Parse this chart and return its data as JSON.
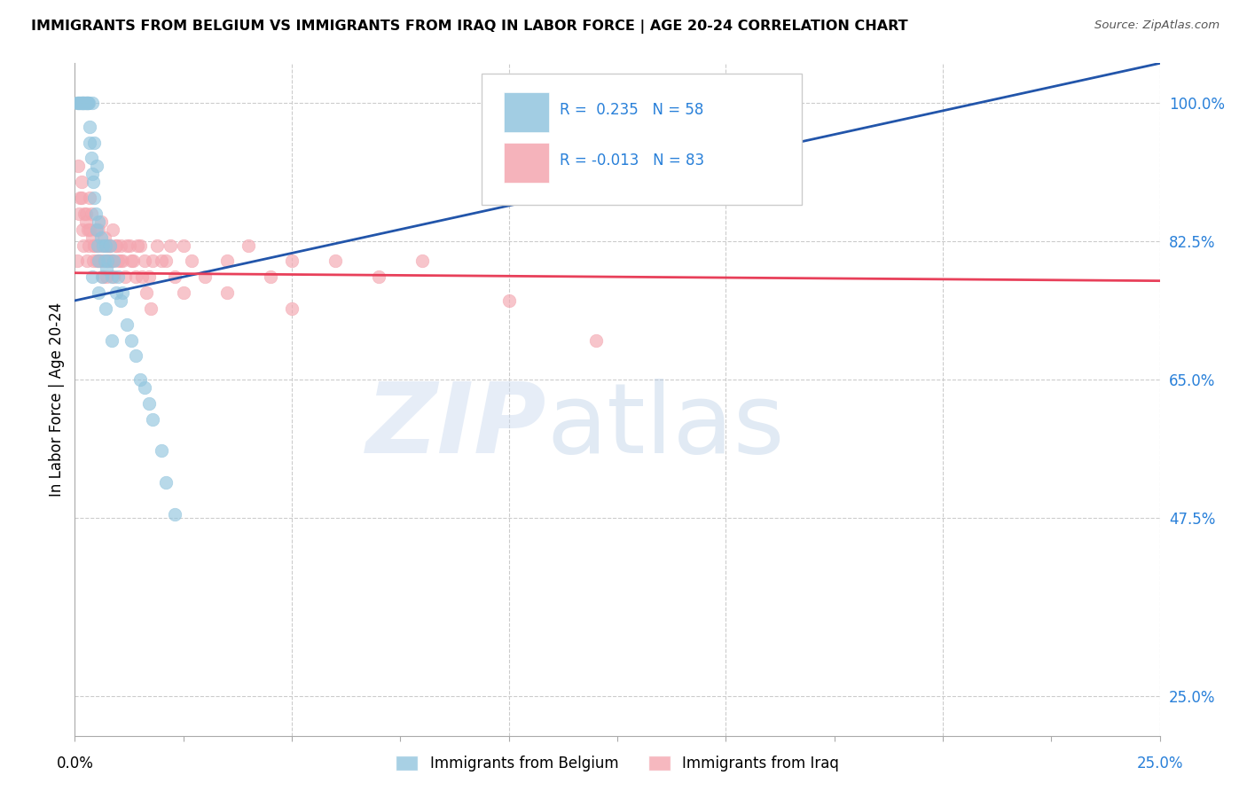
{
  "title": "IMMIGRANTS FROM BELGIUM VS IMMIGRANTS FROM IRAQ IN LABOR FORCE | AGE 20-24 CORRELATION CHART",
  "source": "Source: ZipAtlas.com",
  "ylabel": "In Labor Force | Age 20-24",
  "yticks": [
    25.0,
    47.5,
    65.0,
    82.5,
    100.0
  ],
  "xmin": 0.0,
  "xmax": 25.0,
  "ymin": 20.0,
  "ymax": 105.0,
  "legend_R_belgium": " 0.235",
  "legend_N_belgium": "58",
  "legend_R_iraq": "-0.013",
  "legend_N_iraq": "83",
  "color_belgium": "#92c5de",
  "color_iraq": "#f4a6b0",
  "trendline_belgium_color": "#2255aa",
  "trendline_iraq_color": "#e8405a",
  "bel_trend_x0": 0.0,
  "bel_trend_y0": 75.0,
  "bel_trend_x1": 25.0,
  "bel_trend_y1": 105.0,
  "iraq_trend_x0": 0.0,
  "iraq_trend_y0": 78.5,
  "iraq_trend_x1": 25.0,
  "iraq_trend_y1": 77.5,
  "belgium_x": [
    0.05,
    0.08,
    0.1,
    0.12,
    0.15,
    0.15,
    0.18,
    0.2,
    0.2,
    0.22,
    0.25,
    0.25,
    0.28,
    0.3,
    0.3,
    0.32,
    0.35,
    0.35,
    0.38,
    0.4,
    0.4,
    0.42,
    0.45,
    0.45,
    0.48,
    0.5,
    0.5,
    0.52,
    0.55,
    0.55,
    0.6,
    0.62,
    0.65,
    0.68,
    0.7,
    0.72,
    0.75,
    0.8,
    0.85,
    0.9,
    0.95,
    1.0,
    1.05,
    1.1,
    1.2,
    1.3,
    1.4,
    1.5,
    1.6,
    1.7,
    1.8,
    2.0,
    2.1,
    2.3,
    0.4,
    0.55,
    0.7,
    0.85
  ],
  "belgium_y": [
    100,
    100,
    100,
    100,
    100,
    100,
    100,
    100,
    100,
    100,
    100,
    100,
    100,
    100,
    100,
    100,
    97,
    95,
    93,
    91,
    100,
    90,
    88,
    95,
    86,
    84,
    92,
    82,
    85,
    80,
    83,
    78,
    82,
    80,
    82,
    79,
    80,
    82,
    78,
    80,
    76,
    78,
    75,
    76,
    72,
    70,
    68,
    65,
    64,
    62,
    60,
    56,
    52,
    48,
    78,
    76,
    74,
    70
  ],
  "iraq_x": [
    0.05,
    0.08,
    0.1,
    0.12,
    0.15,
    0.18,
    0.2,
    0.22,
    0.25,
    0.28,
    0.3,
    0.32,
    0.35,
    0.38,
    0.4,
    0.42,
    0.45,
    0.48,
    0.5,
    0.52,
    0.55,
    0.58,
    0.6,
    0.62,
    0.65,
    0.68,
    0.7,
    0.72,
    0.75,
    0.78,
    0.8,
    0.82,
    0.85,
    0.88,
    0.9,
    0.95,
    1.0,
    1.05,
    1.1,
    1.2,
    1.3,
    1.4,
    1.5,
    1.6,
    1.7,
    1.8,
    1.9,
    2.0,
    2.1,
    2.2,
    2.3,
    2.5,
    2.7,
    3.0,
    3.5,
    4.0,
    4.5,
    5.0,
    6.0,
    7.0,
    8.0,
    10.0,
    0.15,
    0.25,
    0.35,
    0.45,
    0.55,
    0.65,
    0.75,
    0.85,
    0.95,
    1.05,
    1.15,
    1.25,
    1.35,
    1.45,
    1.55,
    1.65,
    1.75,
    2.5,
    3.5,
    5.0,
    12.0
  ],
  "iraq_y": [
    80,
    92,
    86,
    88,
    90,
    84,
    82,
    86,
    85,
    80,
    84,
    82,
    88,
    86,
    83,
    80,
    82,
    84,
    80,
    82,
    84,
    80,
    85,
    82,
    80,
    83,
    82,
    78,
    80,
    82,
    80,
    82,
    80,
    84,
    78,
    82,
    80,
    82,
    80,
    82,
    80,
    78,
    82,
    80,
    78,
    80,
    82,
    80,
    80,
    82,
    78,
    82,
    80,
    78,
    80,
    82,
    78,
    80,
    80,
    78,
    80,
    75,
    88,
    86,
    84,
    82,
    80,
    78,
    82,
    80,
    82,
    80,
    78,
    82,
    80,
    82,
    78,
    76,
    74,
    76,
    76,
    74,
    70
  ]
}
